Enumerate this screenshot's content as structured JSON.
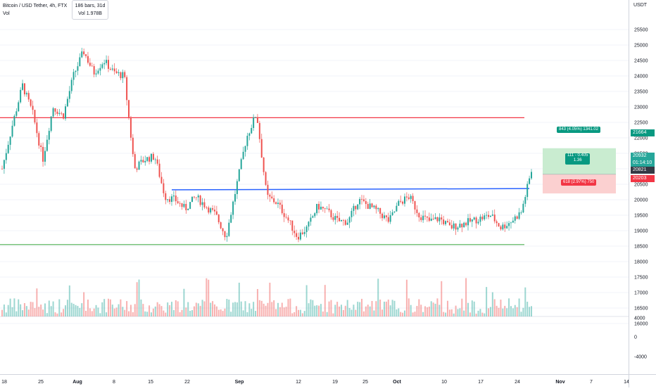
{
  "legend": {
    "title": "Bitcoin / USD Tether, 4h, FTX",
    "volume_label": "Vol"
  },
  "range_box": {
    "bars": "186 bars, 31d",
    "volume": "Vol 1.978B"
  },
  "price_scale": {
    "currency": "USDT",
    "ticks": [
      "25500",
      "25000",
      "24500",
      "24000",
      "23500",
      "23000",
      "22500",
      "22000",
      "21500",
      "21000",
      "20500",
      "20000",
      "19500",
      "19000",
      "18500",
      "18000",
      "17500",
      "17000",
      "16500",
      "16000"
    ],
    "volume_ticks": [
      "4000",
      "0",
      "-4000"
    ]
  },
  "time_scale": {
    "labels": [
      "18",
      "25",
      "Aug",
      "8",
      "15",
      "22",
      "Sep",
      "12",
      "19",
      "25",
      "Oct",
      "10",
      "17",
      "24",
      "Nov",
      "7",
      "14"
    ]
  },
  "levels": {
    "resistance": 22650,
    "support": 18550,
    "trend_start": 20320,
    "trend_end": 20360
  },
  "position": {
    "target_label": "843 (4.05%) 1341.02",
    "stop_label": "618 (2.97%) 750",
    "ratio_line1": "111 - 0.405",
    "ratio_line2": "1.36",
    "target_price": "21664",
    "current_price": "20932",
    "countdown": "01:14:10",
    "entry_price": "20821",
    "stop_price": "20203"
  },
  "colors": {
    "up": "#26a69a",
    "down": "#ef5350",
    "resistance": "#f23645",
    "support": "#4caf50",
    "trend": "#2962ff",
    "profit_zone": "#c9ecd0",
    "loss_zone": "#fbd0d0",
    "target_tag": "#089981",
    "stop_tag": "#f23645",
    "entry_tag": "#363a45"
  },
  "chart_data": {
    "type": "candlestick",
    "title": "Bitcoin / USD Tether, 4h, FTX",
    "ylabel": "USDT",
    "ylim": [
      15850,
      26000
    ],
    "x": [
      "Jul 18",
      "Jul 25",
      "Aug 1",
      "Aug 8",
      "Aug 15",
      "Aug 22",
      "Sep 1",
      "Sep 12",
      "Sep 19",
      "Sep 25",
      "Oct 1",
      "Oct 10",
      "Oct 17",
      "Oct 24"
    ],
    "close_path": [
      21000,
      22400,
      23700,
      22800,
      21300,
      23000,
      22700,
      24000,
      24800,
      24100,
      24500,
      24100,
      24000,
      21000,
      21300,
      21400,
      20100,
      20000,
      19700,
      20100,
      19800,
      19500,
      18800,
      20400,
      22000,
      22800,
      20100,
      19900,
      19400,
      18800,
      19100,
      19800,
      19600,
      19300,
      19300,
      20000,
      19800,
      19600,
      19300,
      19900,
      20100,
      19500,
      19300,
      19400,
      19100,
      19200,
      19300,
      19400,
      19500,
      19100,
      19300,
      19600,
      20932
    ]
  }
}
